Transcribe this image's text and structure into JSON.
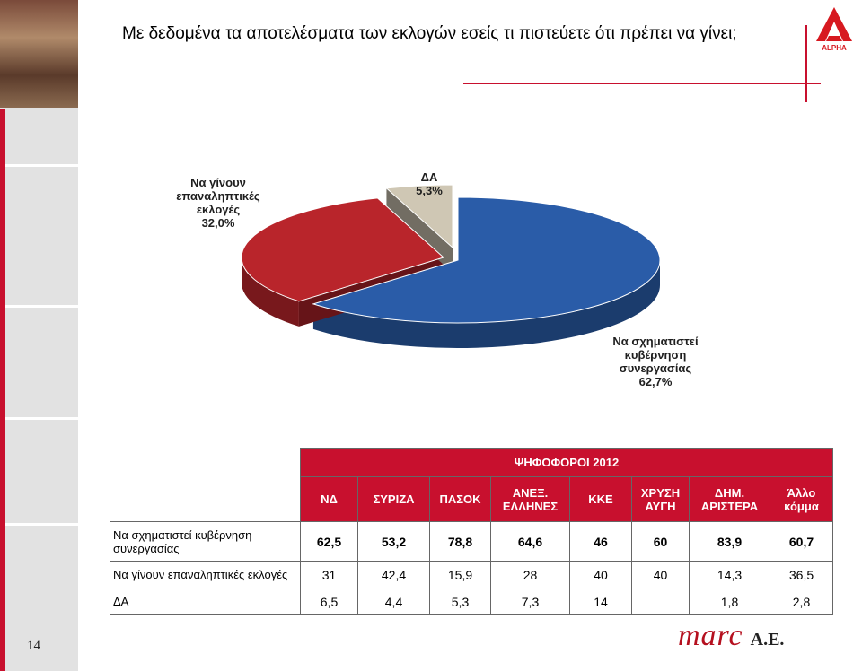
{
  "title": "Με δεδομένα τα αποτελέσματα των εκλογών εσείς τι πιστεύετε ότι πρέπει να γίνει;",
  "page_number": "14",
  "brand_logo_text": "ALPHA",
  "footer_logo": {
    "main": "marc",
    "suffix": "A.E."
  },
  "colors": {
    "accent_red": "#c8102e",
    "slice_blue": "#2a5ca8",
    "slice_red": "#b9252b",
    "slice_grey": "#cfc7b4"
  },
  "chart_data": [
    {
      "type": "pie",
      "title": "",
      "slices": [
        {
          "label": "Να σχηματιστεί κυβέρνηση συνεργασίας",
          "display": "62,7%",
          "value": 62.7,
          "color": "#2a5ca8"
        },
        {
          "label": "Να γίνουν επαναληπτικές εκλογές",
          "display": "32,0%",
          "value": 32.0,
          "color": "#b9252b"
        },
        {
          "label": "ΔΑ",
          "display": "5,3%",
          "value": 5.3,
          "color": "#cfc7b4"
        }
      ]
    },
    {
      "type": "table",
      "title": "ΨΗΦΟΦΟΡΟΙ 2012",
      "columns": [
        "ΝΔ",
        "ΣΥΡΙΖΑ",
        "ΠΑΣΟΚ",
        "ΑΝΕΞ. ΕΛΛΗΝΕΣ",
        "ΚΚΕ",
        "ΧΡΥΣΗ ΑΥΓΗ",
        "ΔΗΜ. ΑΡΙΣΤΕΡΑ",
        "Άλλο κόμμα"
      ],
      "rows": [
        {
          "label": "Να σχηματιστεί κυβέρνηση συνεργασίας",
          "values": [
            "62,5",
            "53,2",
            "78,8",
            "64,6",
            "46",
            "60",
            "83,9",
            "60,7"
          ]
        },
        {
          "label": "Να γίνουν επαναληπτικές εκλογές",
          "values": [
            "31",
            "42,4",
            "15,9",
            "28",
            "40",
            "40",
            "14,3",
            "36,5"
          ]
        },
        {
          "label": "ΔΑ",
          "values": [
            "6,5",
            "4,4",
            "5,3",
            "7,3",
            "14",
            "",
            "1,8",
            "2,8"
          ]
        }
      ]
    }
  ]
}
